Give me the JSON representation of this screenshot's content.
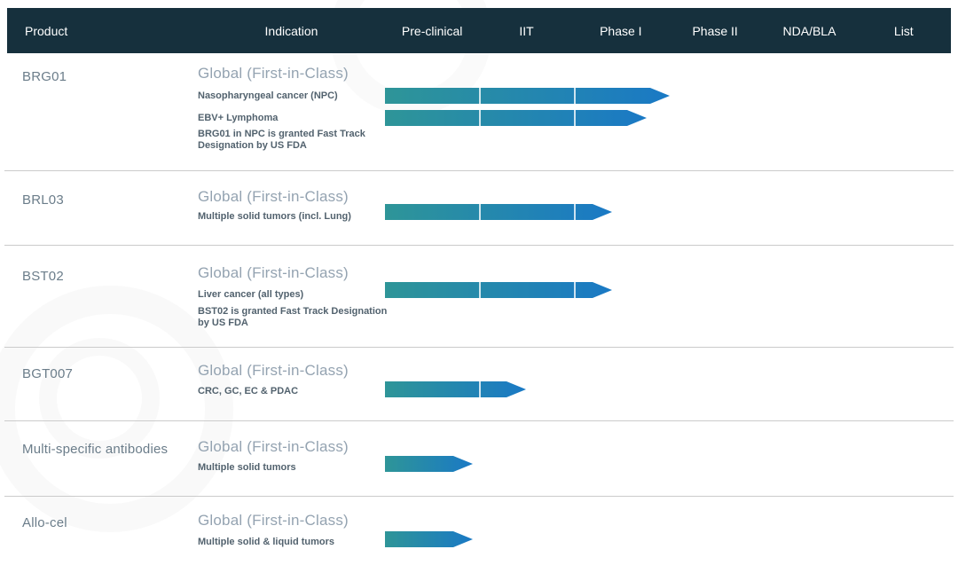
{
  "header": {
    "columns": [
      "Product",
      "Indication",
      "Pre-clinical",
      "IIT",
      "Phase I",
      "Phase II",
      "NDA/BLA",
      "List"
    ]
  },
  "colors": {
    "header_bg": "#16303d",
    "header_text": "#ffffff",
    "arrow_gradient_start": "#2e9598",
    "arrow_gradient_end": "#1a79c5",
    "row_separator": "#cbcbcb",
    "product_text": "#6b7d8a",
    "region_text": "#94a3b1",
    "label_text": "#52626e"
  },
  "chart_data": {
    "type": "bar",
    "orientation": "horizontal",
    "title": "Product pipeline by development phase",
    "phases": [
      "Pre-clinical",
      "IIT",
      "Phase I",
      "Phase II",
      "NDA/BLA",
      "List"
    ],
    "unit": "phase-columns (1.0 = one full phase column)",
    "rows": [
      {
        "product": "BRG01",
        "region": "Global (First-in-Class)",
        "programs": [
          {
            "indication": "Nasopharyngeal cancer (NPC)",
            "progress": 3.02
          },
          {
            "indication": "EBV+ Lymphoma",
            "progress": 2.77
          }
        ],
        "note": "BRG01 in NPC is granted Fast Track Designation by US FDA"
      },
      {
        "product": "BRL03",
        "region": "Global (First-in-Class)",
        "programs": [
          {
            "indication": "Multiple solid tumors (incl. Lung)",
            "progress": 2.41
          }
        ],
        "note": ""
      },
      {
        "product": "BST02",
        "region": "Global (First-in-Class)",
        "programs": [
          {
            "indication": "Liver cancer (all types)",
            "progress": 2.41
          }
        ],
        "note": "BST02 is granted Fast Track Designation by US FDA"
      },
      {
        "product": "BGT007",
        "region": "Global (First-in-Class)",
        "programs": [
          {
            "indication": "CRC, GC, EC & PDAC",
            "progress": 1.5
          }
        ],
        "note": ""
      },
      {
        "product": "Multi-specific antibodies",
        "region": "Global (First-in-Class)",
        "programs": [
          {
            "indication": "Multiple solid tumors",
            "progress": 0.93
          }
        ],
        "note": ""
      },
      {
        "product": "Allo-cel",
        "region": "Global (First-in-Class)",
        "programs": [
          {
            "indication": "Multiple solid & liquid tumors",
            "progress": 0.93
          }
        ],
        "note": ""
      }
    ]
  }
}
